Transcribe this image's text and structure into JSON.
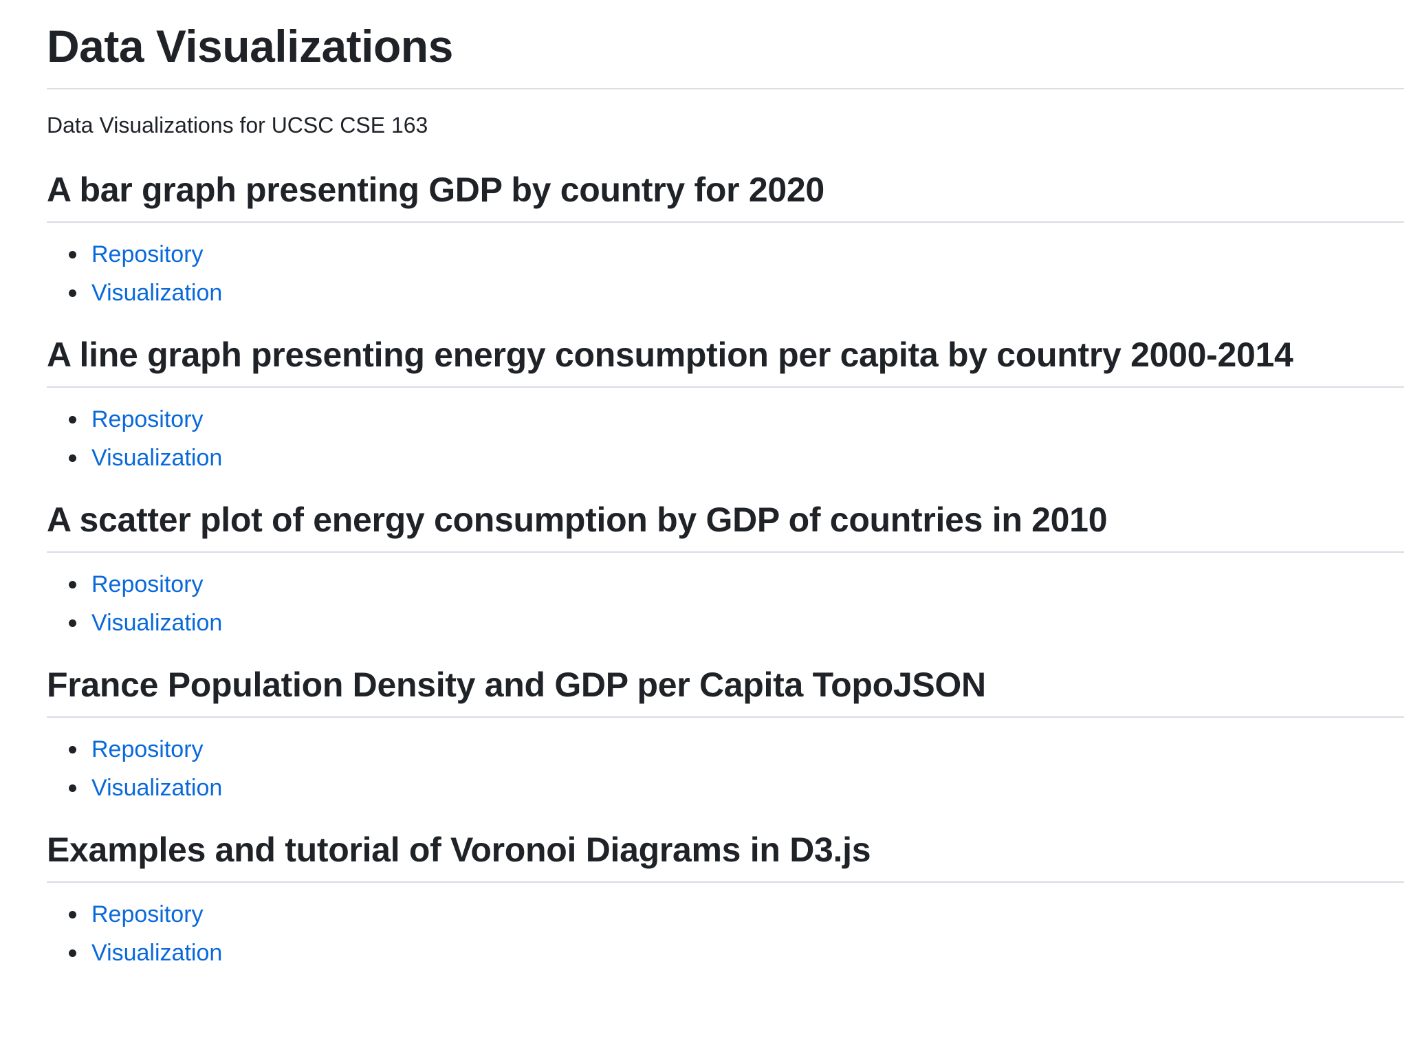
{
  "page": {
    "title": "Data Visualizations",
    "intro": "Data Visualizations for UCSC CSE 163"
  },
  "colors": {
    "text": "#1f2328",
    "link": "#0969da",
    "divider": "#d8dee4"
  },
  "sections": [
    {
      "heading": "A bar graph presenting GDP by country for 2020",
      "links": [
        {
          "label": "Repository"
        },
        {
          "label": "Visualization"
        }
      ]
    },
    {
      "heading": "A line graph presenting energy consumption per capita by country 2000-2014",
      "links": [
        {
          "label": "Repository"
        },
        {
          "label": "Visualization"
        }
      ]
    },
    {
      "heading": "A scatter plot of energy consumption by GDP of countries in 2010",
      "links": [
        {
          "label": "Repository"
        },
        {
          "label": "Visualization"
        }
      ]
    },
    {
      "heading": "France Population Density and GDP per Capita TopoJSON",
      "links": [
        {
          "label": "Repository"
        },
        {
          "label": "Visualization"
        }
      ]
    },
    {
      "heading": "Examples and tutorial of Voronoi Diagrams in D3.js",
      "links": [
        {
          "label": "Repository"
        },
        {
          "label": "Visualization"
        }
      ]
    }
  ]
}
